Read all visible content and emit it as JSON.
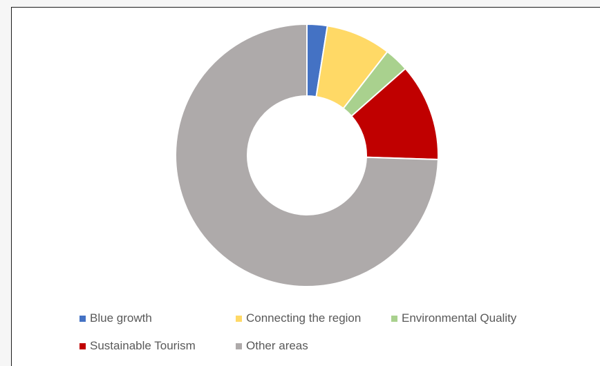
{
  "chart_data": {
    "type": "pie",
    "donut": true,
    "categories": [
      "Blue growth",
      "Connecting the region",
      "Environmental Quality",
      "Sustainable Tourism",
      "Other areas"
    ],
    "values": [
      2.5,
      8.0,
      3.0,
      12.0,
      74.5
    ],
    "unit": "%",
    "colors": [
      "#4472c4",
      "#ffd966",
      "#a9d18e",
      "#c00000",
      "#aeaaaa"
    ],
    "title": "",
    "legend_position": "bottom",
    "legend": [
      {
        "label": "Blue growth",
        "color": "#4472c4"
      },
      {
        "label": "Connecting the region",
        "color": "#ffd966"
      },
      {
        "label": "Environmental Quality",
        "color": "#a9d18e"
      },
      {
        "label": "Sustainable Tourism",
        "color": "#c00000"
      },
      {
        "label": "Other areas",
        "color": "#aeaaaa"
      }
    ]
  }
}
